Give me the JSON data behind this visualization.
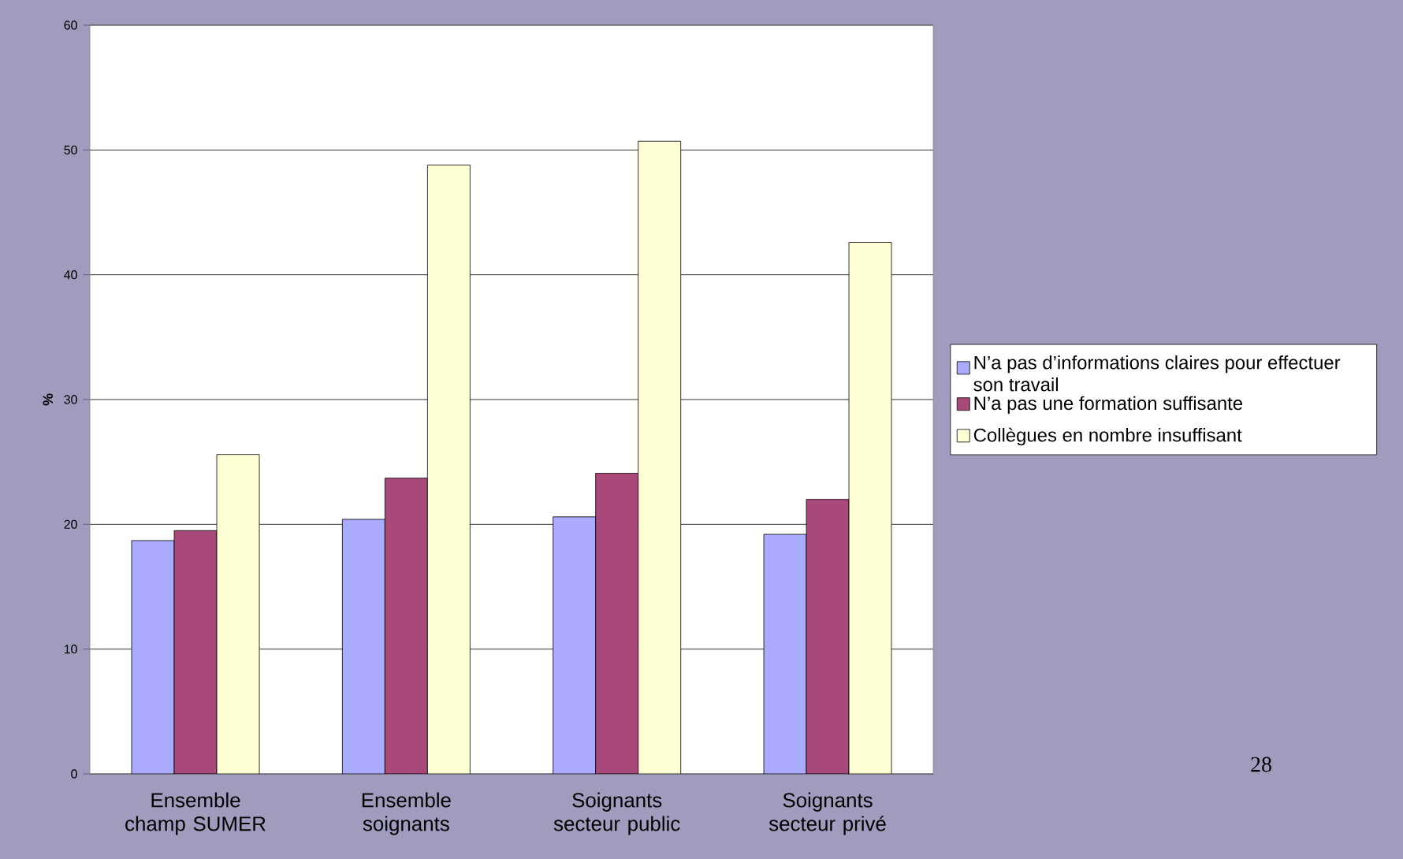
{
  "chart_data": {
    "type": "bar",
    "ylabel": "%",
    "categories": [
      "Ensemble champ SUMER",
      "Ensemble soignants",
      "Soignants secteur public",
      "Soignants secteur  privé"
    ],
    "series": [
      {
        "name": "N’a pas d’informations claires pour effectuer son travail",
        "color": "#aaaaff",
        "values": [
          18.7,
          20.4,
          20.6,
          19.2
        ]
      },
      {
        "name": "N’a pas une formation suffisante",
        "color": "#a9497a",
        "values": [
          19.5,
          23.7,
          24.1,
          22.0
        ]
      },
      {
        "name": "Collègues en nombre insuffisant",
        "color": "#ffffd6",
        "values": [
          25.6,
          48.8,
          50.7,
          42.6
        ]
      }
    ],
    "ylim": [
      0,
      60
    ],
    "yticks": [
      0,
      10,
      20,
      30,
      40,
      50,
      60
    ],
    "grid": "y",
    "legend": "right",
    "annotations": [
      "28"
    ]
  }
}
